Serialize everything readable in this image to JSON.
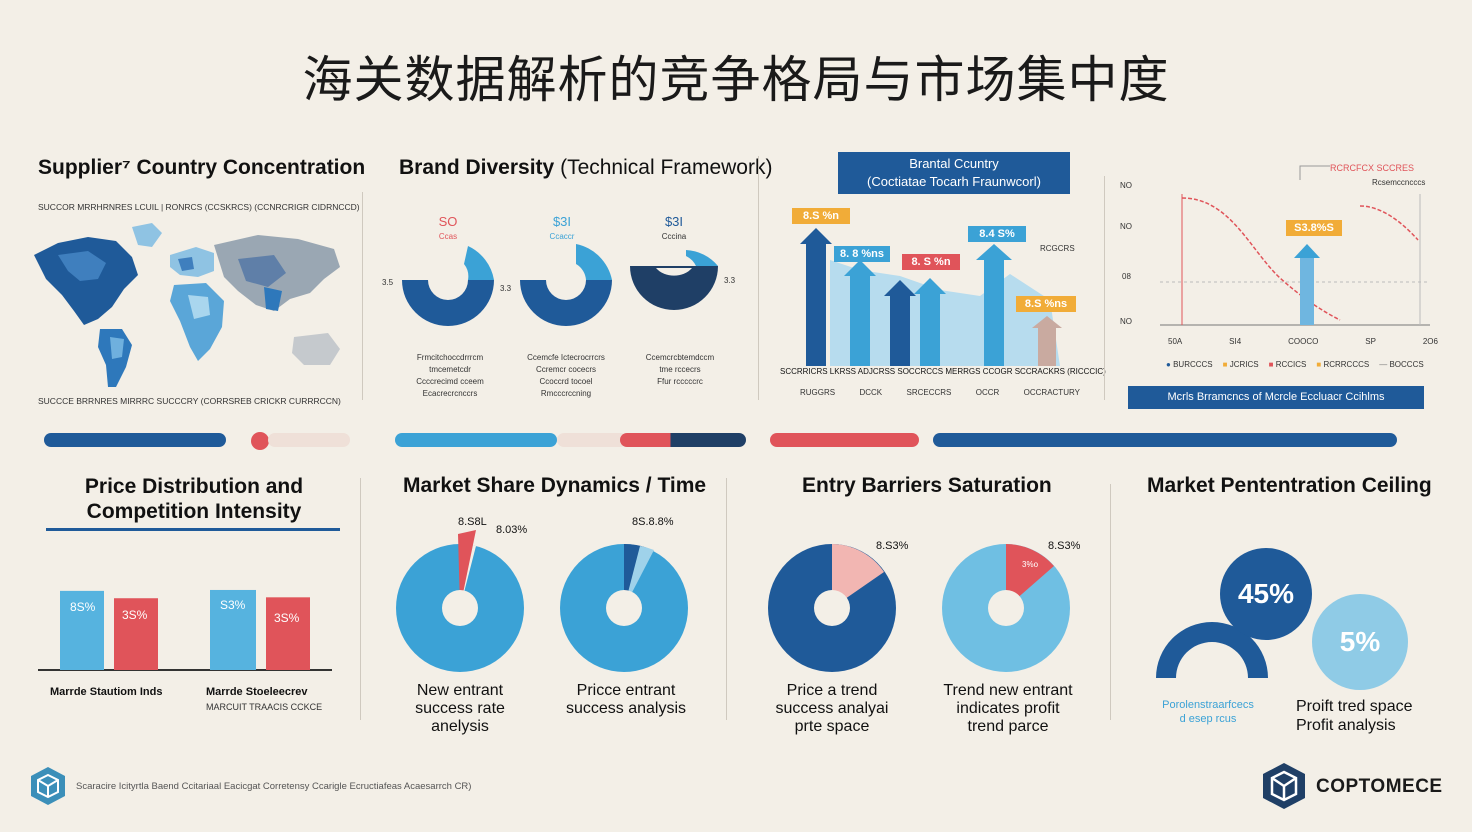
{
  "title": "海关数据解析的竞争格局与市场集中度",
  "colors": {
    "navy": "#1f5a99",
    "blue": "#3ba2d6",
    "light": "#9fd2ea",
    "red": "#e0545a",
    "orange": "#f1ac38",
    "bg": "#f3efe7"
  },
  "panels": {
    "supplier": {
      "title": "Supplier⁷ Country Concentration",
      "top_caption": "SUCCOR MRRHRNRES LCUIL | RONRCS (CCSKRCS) (CCNRCRIGR CIDRNCCD)",
      "bottom_caption": "SUCCCE BRRNRES MIRRRC SUCCCRY (CORRSREB CRICKR CURRRCCN)"
    },
    "brand": {
      "title_main": "Brand Diversity",
      "title_sub": "(Technical Framework)",
      "donuts": [
        {
          "value": "SO",
          "sub": "Ccas",
          "side": "3.5",
          "caption": [
            "Frmcitchoccdrrrcm",
            "tmcemetcdr",
            "Ccccrecimd cceem",
            "Ecacrecrcnccrs"
          ]
        },
        {
          "value": "$3I",
          "sub": "Ccaccr",
          "side": "3.3",
          "caption": [
            "Ccemcfe Ictecrocrrcrs",
            "Ccremcr cocecrs",
            "Ccoccrd tocoel",
            "Rmcccrccning"
          ]
        },
        {
          "value": "$3I",
          "sub": "Cccina",
          "side": "3.3",
          "caption": [
            "Ccemcrcbtemdccm",
            "tme rccecrs",
            "Ffur rcccccrc"
          ]
        }
      ]
    },
    "brand_country": {
      "title_line1": "Brantal Ccuntry",
      "title_line2": "(Coctiatae Tocarh Fraunwcorl)",
      "right_label": "RCGCRS",
      "tags": [
        "8.S %n",
        "8. 8 %ns",
        "8. S %n",
        "8.4 S%",
        "8.S %ns"
      ],
      "axis_label": "SCCRRICRS LKRSS ADJCRSS SOCCRCCS MERRGS CCOGR SCCRACKRS (RICCCIC)",
      "x_labels": [
        "RUGGRS",
        "DCCK",
        "SRCECCRS",
        "OCCR",
        "OCCRACTURY"
      ]
    },
    "trend": {
      "legend_title": "RCRCFCX SCCRES",
      "legend_sub": "Rcsemccncccs",
      "y_labels": [
        "NO",
        "NO",
        "08",
        "NO"
      ],
      "x_labels": [
        "50A",
        "SI4",
        "COOCO",
        "SP",
        "2O6"
      ],
      "tag": "S3.8%S",
      "legend_items": [
        "BURCCCS",
        "JCRICS",
        "RCCICS",
        "RCRRCCCS",
        "BOCCCS"
      ],
      "banner": "Mcrls Brramcncs of Mcrcle Eccluacr Ccihlms"
    },
    "price": {
      "title_line1": "Price Distribution and",
      "title_line2": "Competition Intensity",
      "bars": [
        {
          "label": "8S%",
          "value": 86
        },
        {
          "label": "3S%",
          "value": 78
        },
        {
          "label": "S3%",
          "value": 87
        },
        {
          "label": "3S%",
          "value": 79
        }
      ],
      "cap1": "Marrde Stautiom Inds",
      "cap2a": "Marrde Stoeleecrev",
      "cap2b": "MARCUIT TRAACIS CCKCE"
    },
    "share": {
      "title": "Market Share Dynamics / Time",
      "p1": {
        "top": "8.S8L",
        "right": "8.03%",
        "caption": [
          "New entrant",
          "success rate",
          "anelysis"
        ]
      },
      "p2": {
        "top": "8S.8.8%",
        "caption": [
          "Pricce entrant",
          "success analysis"
        ]
      }
    },
    "entry": {
      "title": "Entry Barriers Saturation",
      "p1": {
        "right": "8.S3%",
        "caption": [
          "Price a trend",
          "success analyai",
          "prte space"
        ]
      },
      "p2": {
        "slice": "3%o",
        "right": "8.S3%",
        "caption": [
          "Trend new entrant",
          "indicates profit",
          "trend parce"
        ]
      }
    },
    "ceiling": {
      "title": "Market Pententration Ceiling",
      "big": "45%",
      "small": "5%",
      "cap_blue": [
        "Porolenstraarfcecs",
        "d esep rcus"
      ],
      "cap_dark": [
        "Proift tred space",
        "Profit analysis"
      ]
    }
  },
  "footer": {
    "left_text": "Scaracire Icityrtla Baend Ccitariaal Eacicgat Corretensy Ccarigle Ecructiafeas Acaesarrch CR)",
    "brand": "COPTOMECE"
  }
}
